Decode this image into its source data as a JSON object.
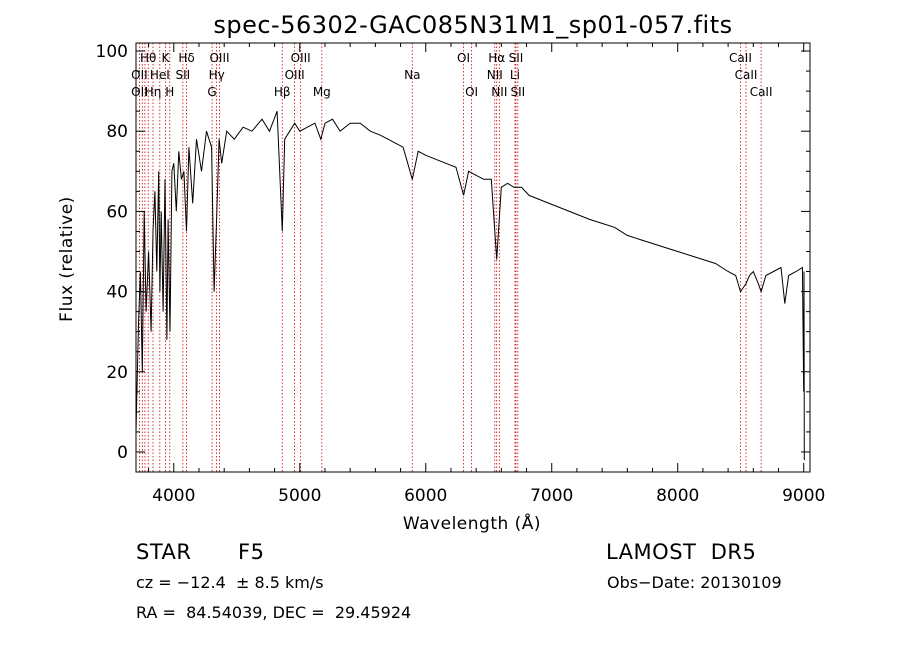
{
  "chart_data": {
    "type": "line",
    "title": "spec-56302-GAC085N31M1_sp01-057.fits",
    "xlabel": "Wavelength (Å)",
    "ylabel": "Flux (relative)",
    "xlim": [
      3700,
      9050
    ],
    "ylim": [
      -5,
      102
    ],
    "xticks": [
      4000,
      5000,
      6000,
      7000,
      8000,
      9000
    ],
    "xtick_labels": [
      "4000",
      "5000",
      "6000",
      "7000",
      "8000",
      "9000"
    ],
    "yticks": [
      0,
      20,
      40,
      60,
      80,
      100
    ],
    "ytick_labels": [
      "0",
      "20",
      "40",
      "60",
      "80",
      "100"
    ],
    "series": [
      {
        "x": [
          3700,
          3720,
          3735,
          3750,
          3765,
          3780,
          3800,
          3820,
          3835,
          3850,
          3865,
          3880,
          3890,
          3900,
          3915,
          3930,
          3945,
          3955,
          3970,
          3985,
          4000,
          4020,
          4040,
          4060,
          4080,
          4101,
          4120,
          4150,
          4180,
          4220,
          4260,
          4300,
          4320,
          4340,
          4360,
          4380,
          4420,
          4480,
          4550,
          4620,
          4700,
          4760,
          4820,
          4861,
          4880,
          4920,
          4960,
          5000,
          5060,
          5120,
          5167,
          5200,
          5260,
          5320,
          5400,
          5480,
          5560,
          5640,
          5700,
          5760,
          5820,
          5893,
          5940,
          6000,
          6080,
          6160,
          6240,
          6300,
          6340,
          6400,
          6460,
          6520,
          6563,
          6600,
          6650,
          6700,
          6760,
          6820,
          6900,
          6980,
          7060,
          7140,
          7220,
          7300,
          7400,
          7500,
          7600,
          7700,
          7800,
          7900,
          8000,
          8100,
          8200,
          8300,
          8400,
          8460,
          8498,
          8542,
          8570,
          8600,
          8640,
          8662,
          8700,
          8760,
          8820,
          8850,
          8880,
          8940,
          8990,
          9000,
          9002,
          9005
        ],
        "y": [
          5,
          32,
          45,
          20,
          60,
          35,
          50,
          30,
          55,
          65,
          45,
          70,
          40,
          60,
          35,
          68,
          28,
          58,
          30,
          70,
          72,
          60,
          75,
          68,
          70,
          55,
          76,
          62,
          78,
          70,
          80,
          76,
          40,
          58,
          78,
          72,
          80,
          78,
          81,
          80,
          83,
          80,
          85,
          55,
          78,
          80,
          82,
          80,
          81,
          82,
          78,
          82,
          83,
          80,
          82,
          82,
          80,
          79,
          78,
          77,
          76,
          68,
          75,
          74,
          73,
          72,
          71,
          64,
          70,
          69,
          68,
          68,
          48,
          66,
          67,
          66,
          66,
          64,
          63,
          62,
          61,
          60,
          59,
          58,
          57,
          56,
          54,
          53,
          52,
          51,
          50,
          49,
          48,
          47,
          45,
          44,
          40,
          42,
          44,
          45,
          42,
          40,
          44,
          45,
          46,
          37,
          44,
          45,
          46,
          15,
          45,
          -2
        ]
      }
    ],
    "line_labels": [
      {
        "name": "Hθ",
        "x": 3797,
        "row": 1
      },
      {
        "name": "K",
        "x": 3934,
        "row": 1
      },
      {
        "name": "Hδ",
        "x": 4101,
        "row": 1
      },
      {
        "name": "OIII",
        "x": 4363,
        "row": 1
      },
      {
        "name": "OIII",
        "x": 5007,
        "row": 1
      },
      {
        "name": "OI",
        "x": 6300,
        "row": 1
      },
      {
        "name": "Hα",
        "x": 6563,
        "row": 1
      },
      {
        "name": "SII",
        "x": 6716,
        "row": 1
      },
      {
        "name": "CaII",
        "x": 8498,
        "row": 1
      },
      {
        "name": "OII",
        "x": 3727,
        "row": 2
      },
      {
        "name": "HeI",
        "x": 3889,
        "row": 2
      },
      {
        "name": "SII",
        "x": 4072,
        "row": 2
      },
      {
        "name": "Hγ",
        "x": 4340,
        "row": 2
      },
      {
        "name": "OIII",
        "x": 4959,
        "row": 2
      },
      {
        "name": "Na",
        "x": 5893,
        "row": 2
      },
      {
        "name": "NII",
        "x": 6548,
        "row": 2
      },
      {
        "name": "Li",
        "x": 6708,
        "row": 2
      },
      {
        "name": "CaII",
        "x": 8542,
        "row": 2
      },
      {
        "name": "OII",
        "x": 3727,
        "row": 3
      },
      {
        "name": "Hη",
        "x": 3835,
        "row": 3
      },
      {
        "name": "H",
        "x": 3968,
        "row": 3
      },
      {
        "name": "G",
        "x": 4304,
        "row": 3
      },
      {
        "name": "Hβ",
        "x": 4861,
        "row": 3
      },
      {
        "name": "Mg",
        "x": 5175,
        "row": 3
      },
      {
        "name": "OI",
        "x": 6364,
        "row": 3
      },
      {
        "name": "NII",
        "x": 6584,
        "row": 3
      },
      {
        "name": "SII",
        "x": 6731,
        "row": 3
      },
      {
        "name": "CaII",
        "x": 8662,
        "row": 3
      }
    ],
    "line_positions": [
      3727,
      3750,
      3771,
      3797,
      3835,
      3889,
      3934,
      3968,
      4072,
      4101,
      4304,
      4340,
      4363,
      4861,
      4959,
      5007,
      5175,
      5893,
      6300,
      6364,
      6548,
      6563,
      6584,
      6708,
      6716,
      6731,
      8498,
      8542,
      8662
    ],
    "colors": {
      "spectrum": "#000000",
      "lines": "#cc0000"
    }
  },
  "info": {
    "class": "STAR",
    "subclass": "F5",
    "survey": "LAMOST  DR5",
    "cz": "cz = −12.4  ± 8.5 km/s",
    "obs_date": "Obs−Date: 20130109",
    "coords": "RA =  84.54039, DEC =  29.45924"
  }
}
